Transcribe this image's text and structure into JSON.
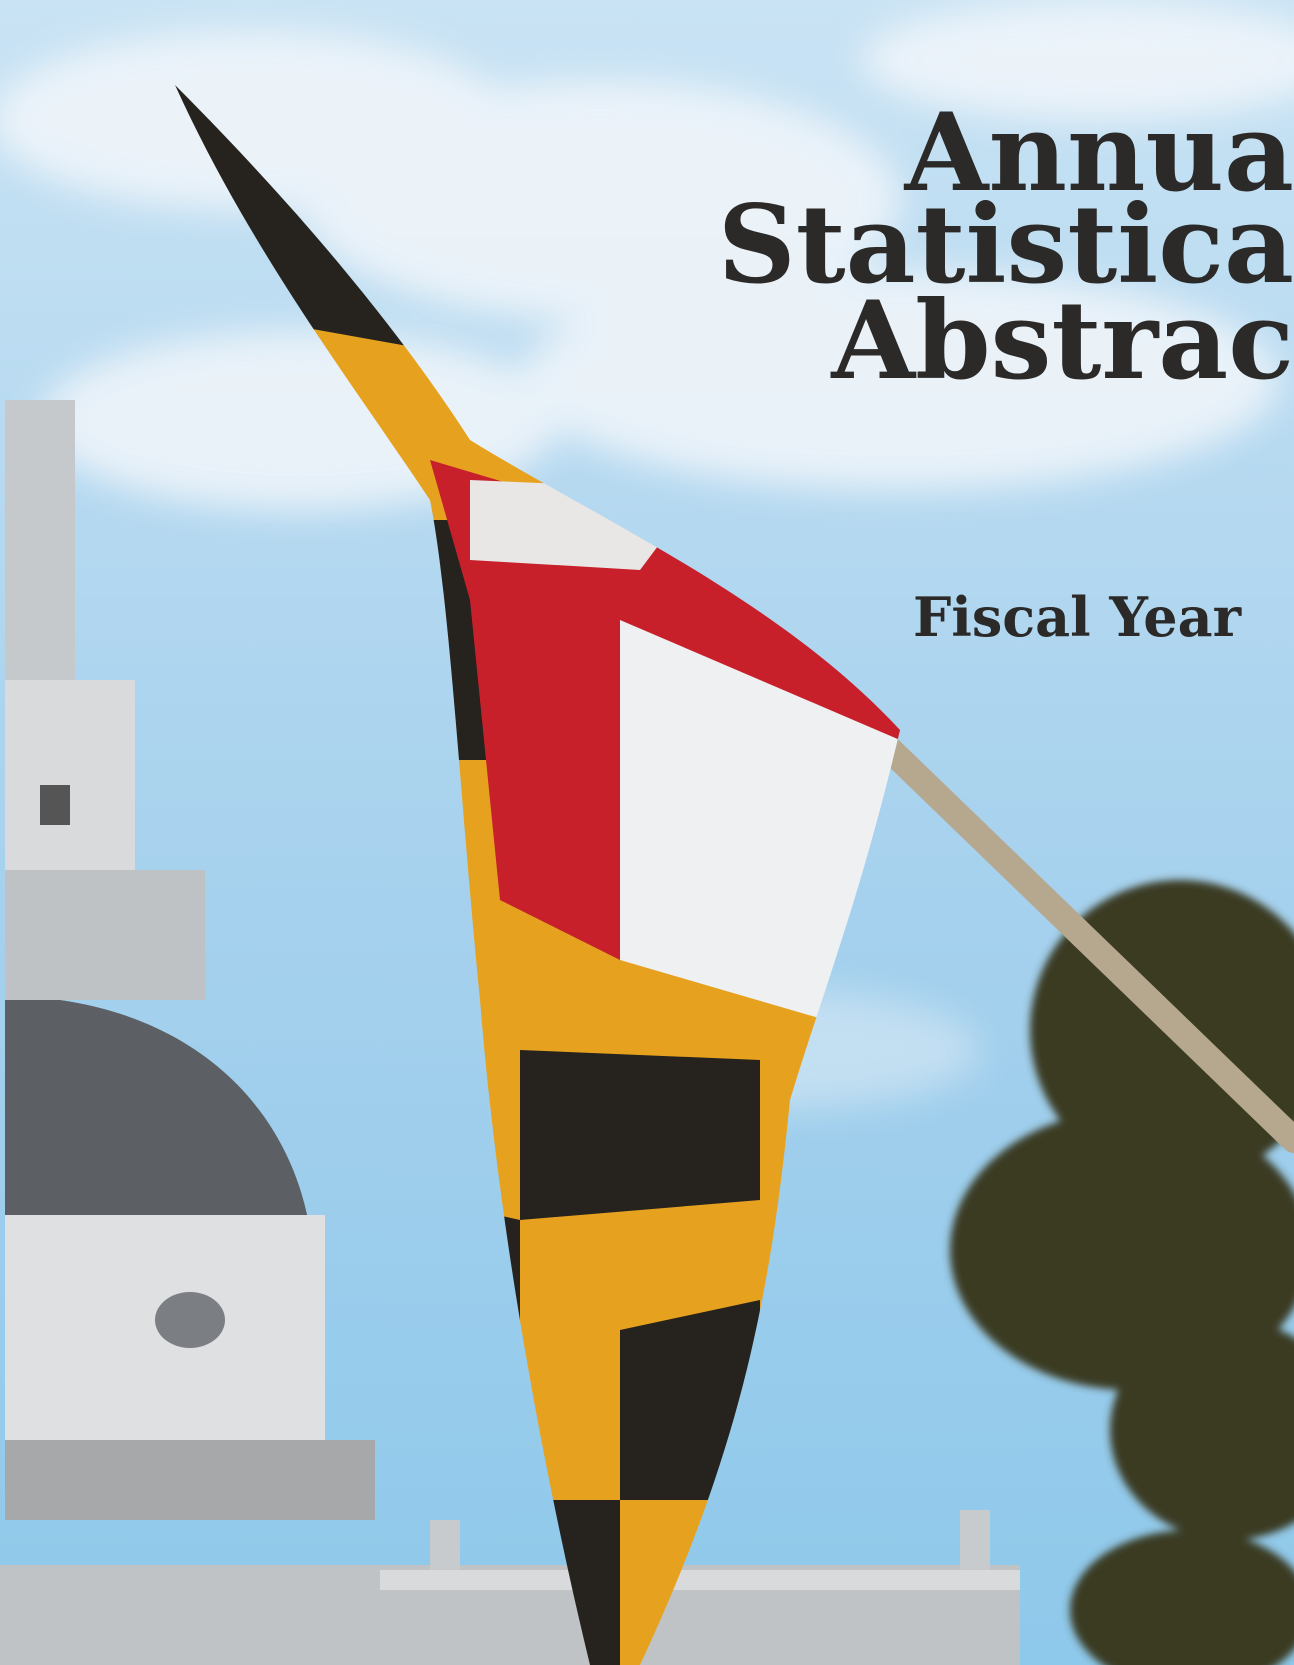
{
  "cover": {
    "title_lines": [
      "Annua",
      "Statistica",
      "Abstrac"
    ],
    "subtitle": "Fiscal Year"
  }
}
